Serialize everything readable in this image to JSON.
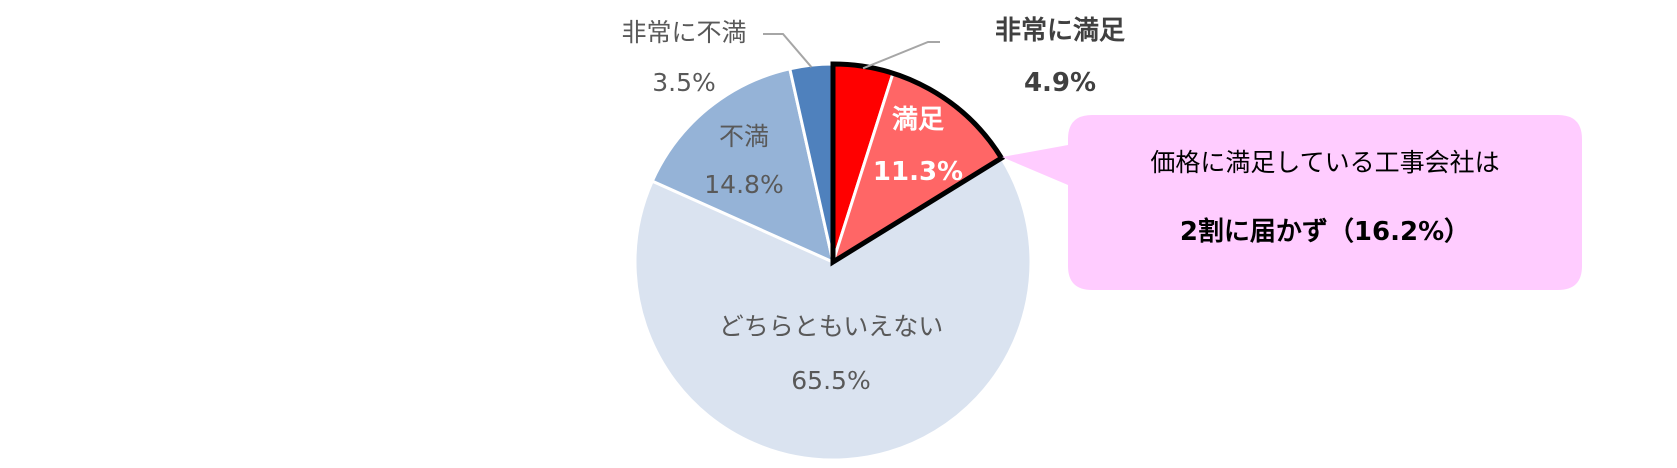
{
  "chart_data": {
    "type": "pie",
    "start": "12 o'clock, clockwise",
    "slices": [
      {
        "label": "非常に満足",
        "value": 4.9,
        "value_label": "4.9%",
        "color": "#ff0000"
      },
      {
        "label": "満足",
        "value": 11.3,
        "value_label": "11.3%",
        "color": "#ff6666"
      },
      {
        "label": "どちらともいえない",
        "value": 65.5,
        "value_label": "65.5%",
        "color": "#dae3f0"
      },
      {
        "label": "不満",
        "value": 14.8,
        "value_label": "14.8%",
        "color": "#95b3d7"
      },
      {
        "label": "非常に不満",
        "value": 3.5,
        "value_label": "3.5%",
        "color": "#4f81bd"
      }
    ],
    "highlighted_slices": [
      "非常に満足",
      "満足"
    ]
  },
  "callout": {
    "line1": "価格に満足している工事会社は",
    "line2": "2割に届かず（16.2%）",
    "background": "#ffccff"
  }
}
